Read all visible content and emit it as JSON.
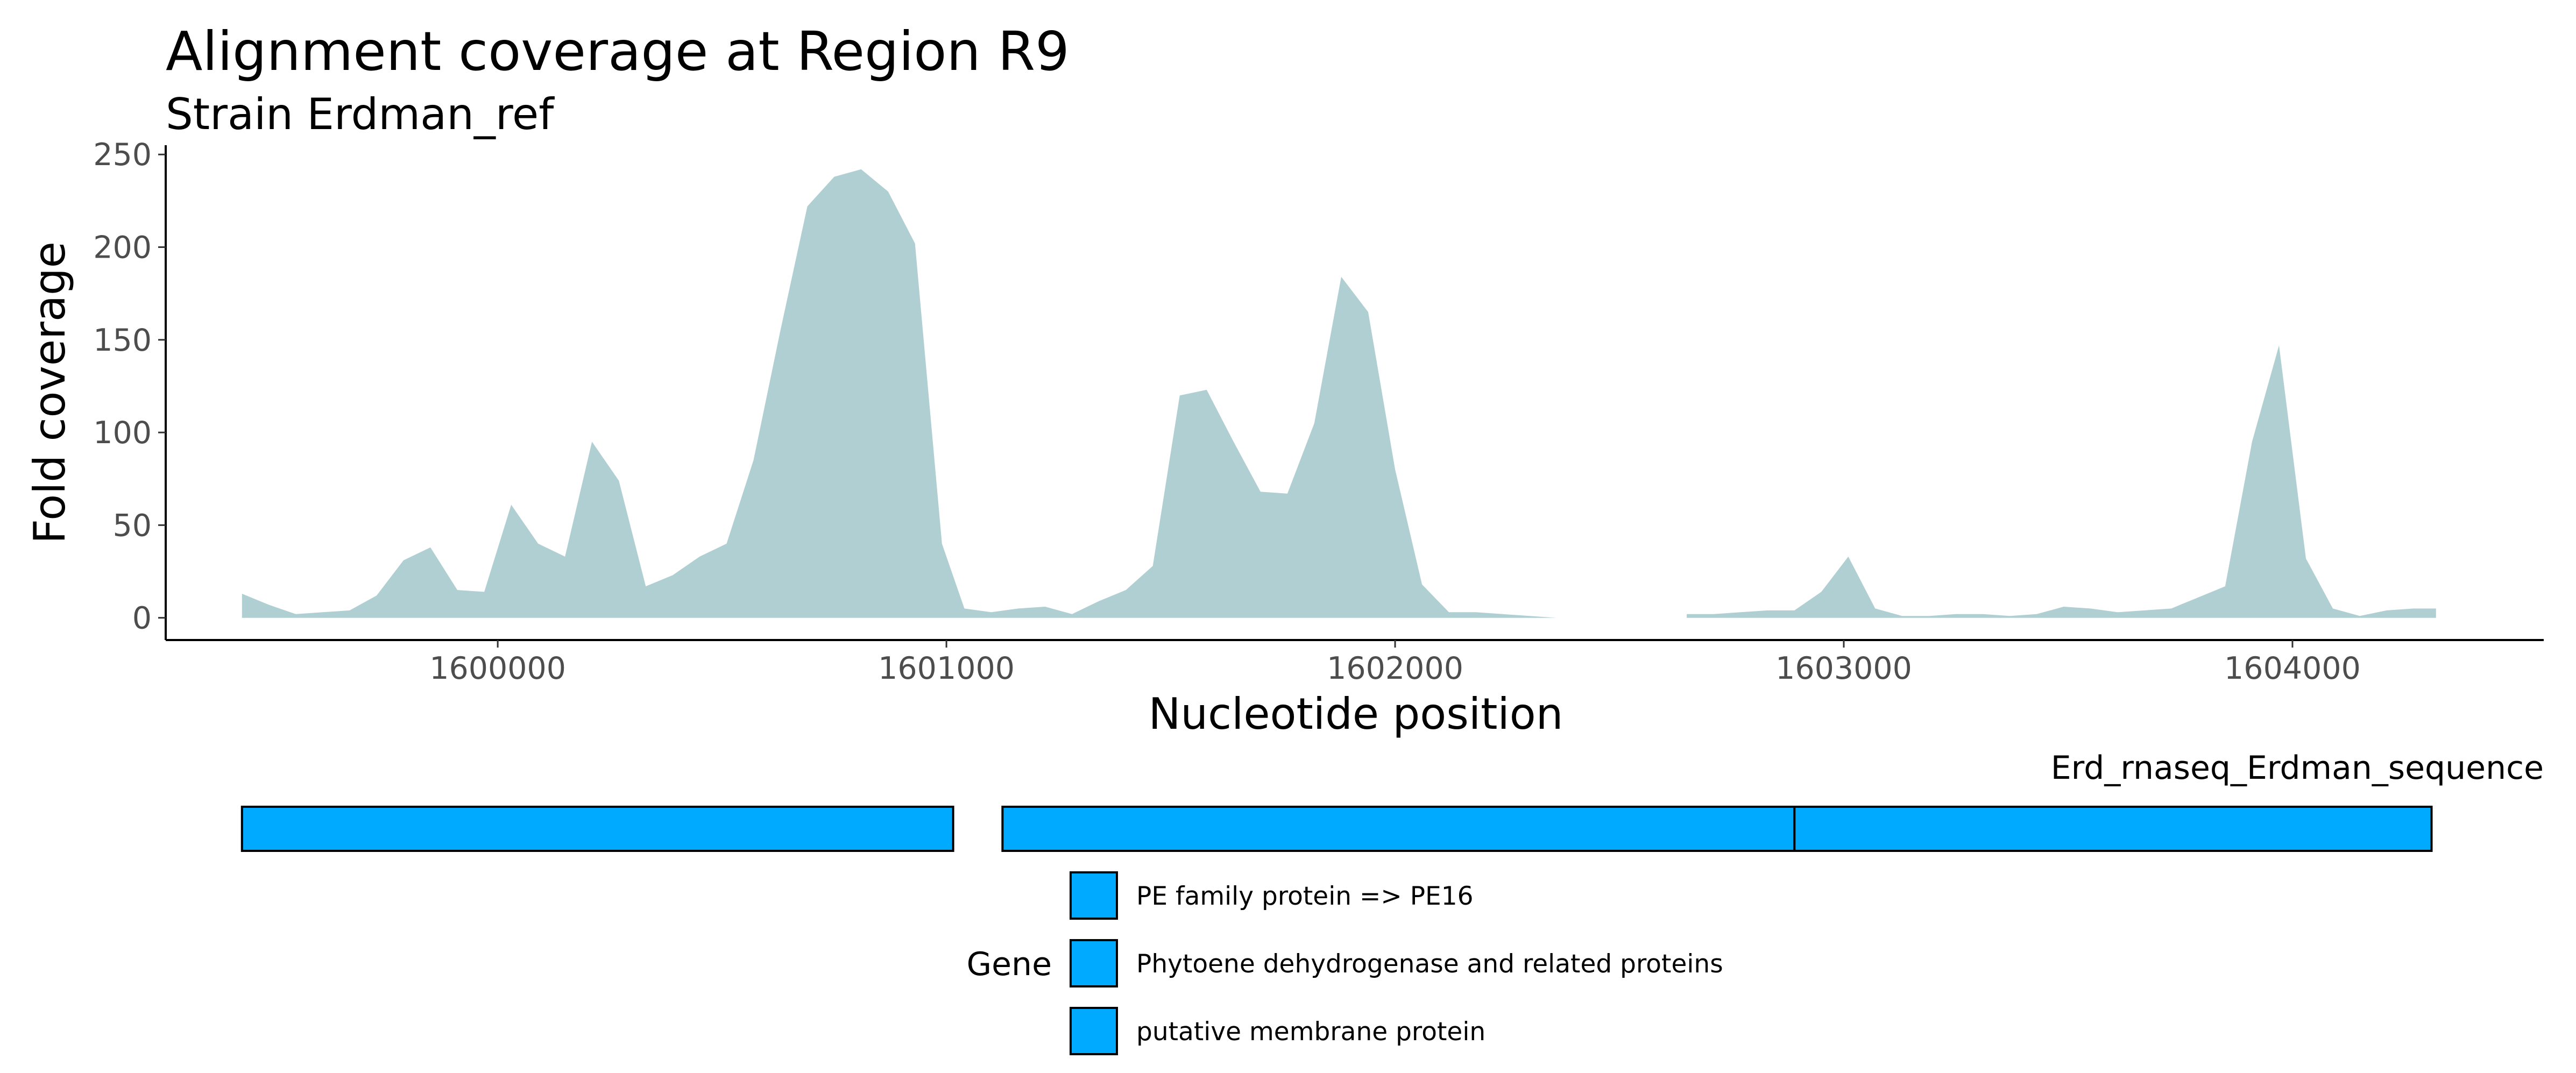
{
  "chart_data": {
    "type": "area",
    "title": "Alignment coverage at Region R9",
    "subtitle": "Strain Erdman_ref",
    "xlabel": "Nucleotide position",
    "ylabel": "Fold coverage",
    "xlim": [
      1599260,
      1604560
    ],
    "ylim": [
      -12,
      255
    ],
    "xticks": [
      1600000,
      1601000,
      1602000,
      1603000,
      1604000
    ],
    "xtick_labels": [
      "1600000",
      "1601000",
      "1602000",
      "1603000",
      "1604000"
    ],
    "yticks": [
      0,
      50,
      100,
      150,
      200,
      250
    ],
    "ytick_labels": [
      "0",
      "50",
      "100",
      "150",
      "200",
      "250"
    ],
    "grid": false,
    "fill_color": "#b0cfd2",
    "series": [
      {
        "segments": [
          {
            "x": [
              1599430,
              1599490,
              1599550,
              1599610,
              1599670,
              1599730,
              1599790,
              1599850,
              1599910,
              1599970,
              1600030,
              1600090,
              1600150,
              1600210,
              1600270,
              1600330,
              1600390,
              1600450,
              1600510,
              1600570,
              1600630,
              1600690,
              1600750,
              1600810,
              1600870,
              1600930,
              1600990,
              1601040,
              1601100,
              1601160,
              1601220,
              1601280,
              1601340,
              1601400,
              1601460,
              1601520,
              1601580,
              1601640,
              1601700,
              1601760,
              1601820,
              1601880,
              1601940,
              1602000,
              1602060,
              1602120,
              1602180,
              1602240,
              1602300,
              1602360,
              1602400
            ],
            "y": [
              13,
              7,
              2,
              3,
              4,
              12,
              31,
              38,
              15,
              14,
              61,
              40,
              33,
              95,
              74,
              17,
              23,
              33,
              40,
              85,
              155,
              222,
              238,
              242,
              230,
              202,
              40,
              5,
              3,
              5,
              6,
              2,
              9,
              15,
              28,
              120,
              123,
              95,
              68,
              67,
              105,
              184,
              165,
              80,
              18,
              3,
              3,
              2,
              1,
              0,
              0
            ]
          },
          {
            "x": [
              1602650,
              1602710,
              1602770,
              1602830,
              1602890,
              1602950,
              1603010,
              1603070,
              1603130,
              1603190,
              1603250,
              1603310,
              1603370,
              1603430,
              1603490,
              1603550,
              1603610,
              1603670,
              1603730,
              1603790,
              1603850,
              1603910,
              1603970,
              1604030,
              1604090,
              1604150,
              1604210,
              1604270,
              1604320
            ],
            "y": [
              2,
              2,
              3,
              4,
              4,
              14,
              33,
              5,
              1,
              1,
              2,
              2,
              1,
              2,
              6,
              5,
              3,
              4,
              5,
              11,
              17,
              95,
              147,
              32,
              5,
              1,
              4,
              5,
              5
            ]
          }
        ]
      }
    ]
  },
  "gene_track": {
    "track_label": "Erd_rnaseq_Erdman_sequence",
    "fill_color": "#00aaff",
    "genes": [
      {
        "start": 1599430,
        "end": 1601015
      },
      {
        "start": 1601125,
        "end": 1602890
      },
      {
        "start": 1602890,
        "end": 1604310
      }
    ]
  },
  "legend": {
    "title": "Gene",
    "items": [
      "PE family protein => PE16",
      "Phytoene dehydrogenase and related proteins",
      "putative membrane protein"
    ]
  }
}
